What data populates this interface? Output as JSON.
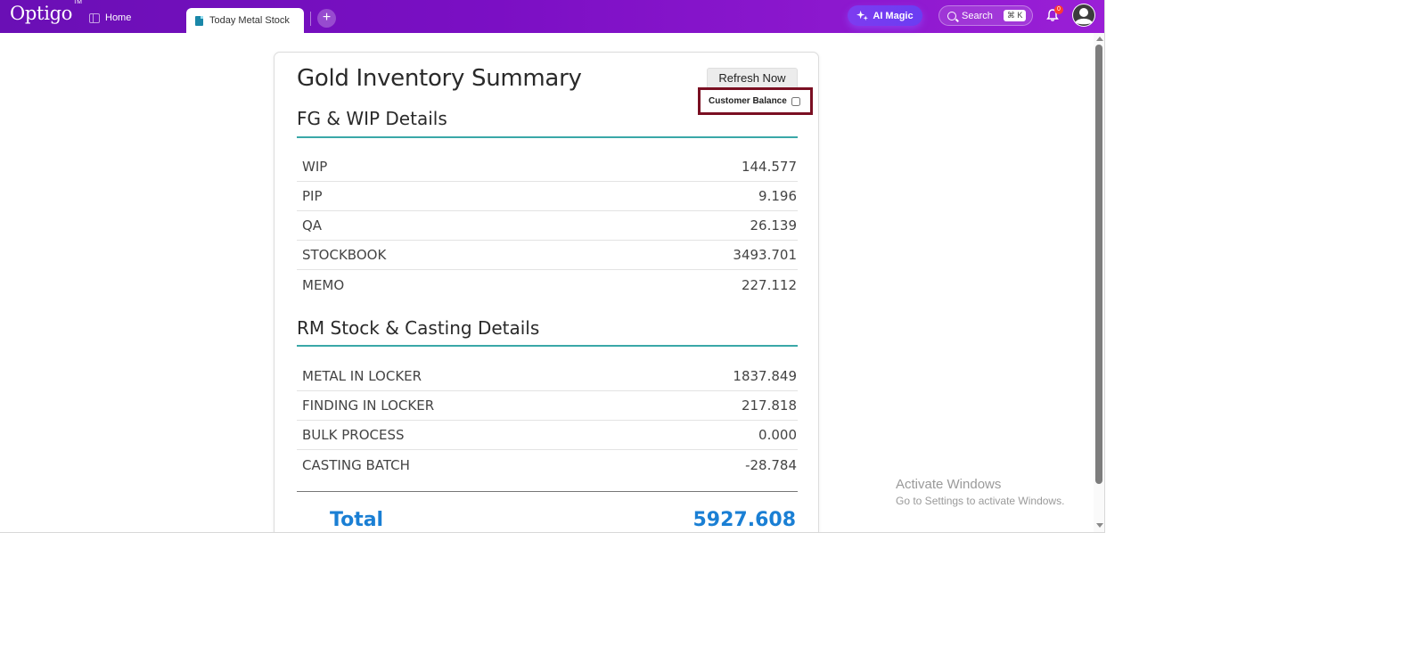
{
  "topbar": {
    "logo": "Optigo",
    "logo_tm": "TM",
    "home_tab": "Home",
    "active_tab": "Today Metal Stock",
    "add_tab": "+",
    "ai_button": "AI Magic",
    "search_label": "Search",
    "search_shortcut": "⌘ K",
    "notification_count": "0"
  },
  "main": {
    "title": "Gold Inventory Summary",
    "refresh_button": "Refresh Now",
    "customer_balance_label": "Customer Balance",
    "customer_balance_checked": false,
    "sections": [
      {
        "title": "FG & WIP Details",
        "rows": [
          {
            "label": "WIP",
            "value": "144.577"
          },
          {
            "label": "PIP",
            "value": "9.196"
          },
          {
            "label": "QA",
            "value": "26.139"
          },
          {
            "label": "STOCKBOOK",
            "value": "3493.701"
          },
          {
            "label": "MEMO",
            "value": "227.112"
          }
        ]
      },
      {
        "title": "RM Stock & Casting Details",
        "rows": [
          {
            "label": "METAL IN LOCKER",
            "value": "1837.849"
          },
          {
            "label": "FINDING IN LOCKER",
            "value": "217.818"
          },
          {
            "label": "BULK PROCESS",
            "value": "0.000"
          },
          {
            "label": "CASTING BATCH",
            "value": "-28.784"
          }
        ]
      }
    ],
    "total_label": "Total",
    "total_value": "5927.608"
  },
  "watermark": {
    "title": "Activate Windows",
    "subtitle": "Go to Settings to activate Windows."
  },
  "colors": {
    "topbar": "#7b0fc4",
    "accent_line": "#3aa8a8",
    "total": "#1a7fd4",
    "highlight_border": "#7a0f22"
  }
}
